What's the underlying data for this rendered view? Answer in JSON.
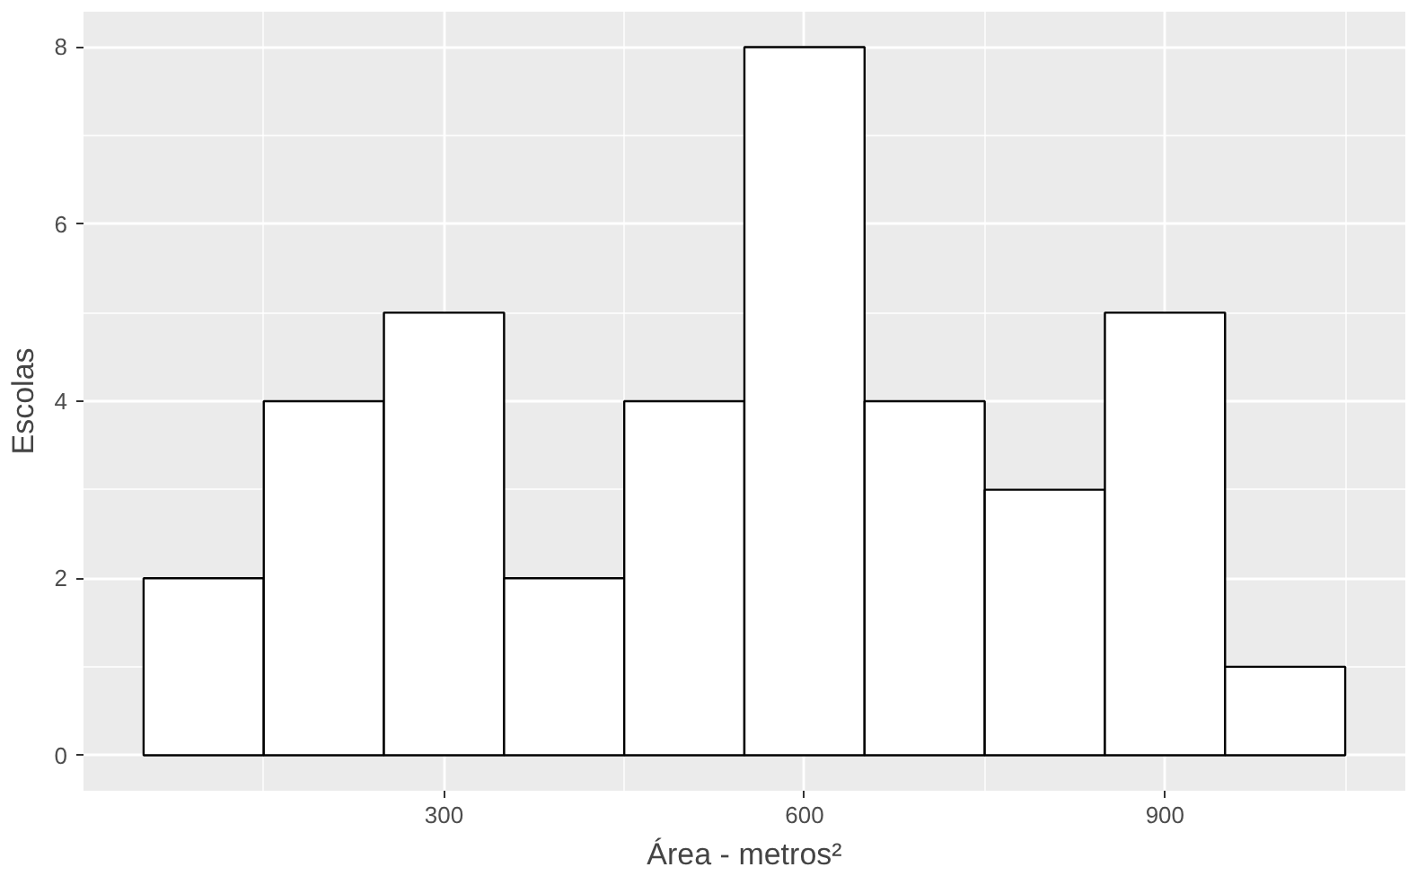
{
  "chart_data": {
    "type": "histogram",
    "xlabel": "Área - metros²",
    "ylabel": "Escolas",
    "bins": [
      50,
      150,
      250,
      350,
      450,
      550,
      650,
      750,
      850,
      950,
      1050
    ],
    "values": [
      2,
      4,
      5,
      2,
      4,
      8,
      4,
      3,
      5,
      1
    ],
    "color": "#ffffff",
    "xlim": [
      0,
      1100
    ],
    "ylim": [
      -0.4,
      8.4
    ],
    "xticks": [
      300,
      600,
      900
    ],
    "yticks": [
      0,
      2,
      4,
      6,
      8
    ],
    "grid": true
  }
}
